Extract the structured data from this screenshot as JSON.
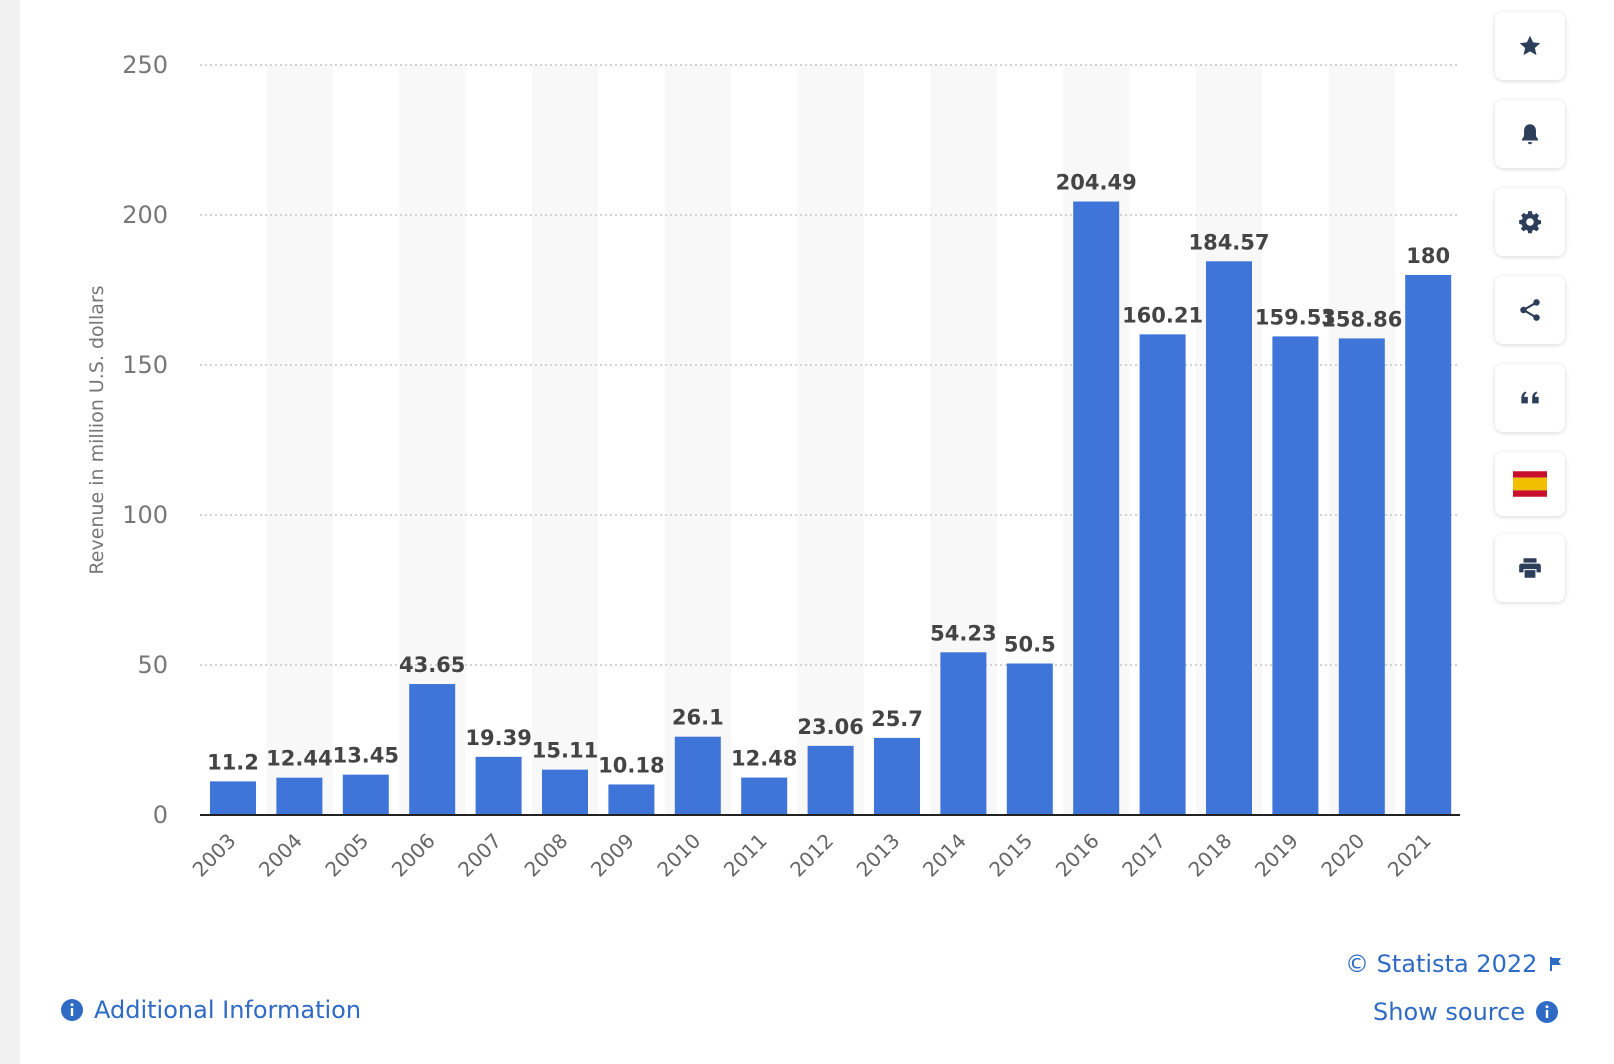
{
  "chart_data": {
    "type": "bar",
    "categories": [
      "2003",
      "2004",
      "2005",
      "2006",
      "2007",
      "2008",
      "2009",
      "2010",
      "2011",
      "2012",
      "2013",
      "2014",
      "2015",
      "2016",
      "2017",
      "2018",
      "2019",
      "2020",
      "2021"
    ],
    "values": [
      11.2,
      12.44,
      13.45,
      43.65,
      19.39,
      15.11,
      10.18,
      26.1,
      12.48,
      23.06,
      25.7,
      54.23,
      50.5,
      204.49,
      160.21,
      184.57,
      159.53,
      158.86,
      180
    ],
    "data_labels": [
      "11.2",
      "12.44",
      "13.45",
      "43.65",
      "19.39",
      "15.11",
      "10.18",
      "26.1",
      "12.48",
      "23.06",
      "25.7",
      "54.23",
      "50.5",
      "204.49",
      "160.21",
      "184.57",
      "159.53",
      "158.86",
      "180"
    ],
    "ylabel": "Revenue in million U.S. dollars",
    "xlabel": "",
    "ylim": [
      0,
      250
    ],
    "yticks": [
      0,
      50,
      100,
      150,
      200,
      250
    ],
    "grid": true,
    "bar_color": "#3f74d8"
  },
  "toolbar": {
    "buttons": [
      {
        "name": "favorite-button",
        "icon": "star-icon"
      },
      {
        "name": "notification-button",
        "icon": "bell-icon"
      },
      {
        "name": "settings-button",
        "icon": "gear-icon"
      },
      {
        "name": "share-button",
        "icon": "share-icon"
      },
      {
        "name": "cite-button",
        "icon": "quote-icon"
      },
      {
        "name": "language-button",
        "icon": "spain-flag-icon"
      },
      {
        "name": "print-button",
        "icon": "printer-icon"
      }
    ]
  },
  "footer": {
    "copyright": "© Statista 2022",
    "show_source": "Show source",
    "additional_info": "Additional Information"
  },
  "colors": {
    "accent": "#2f6bc5",
    "bar": "#3f74d8",
    "axis_text": "#777777",
    "data_label": "#444444"
  }
}
